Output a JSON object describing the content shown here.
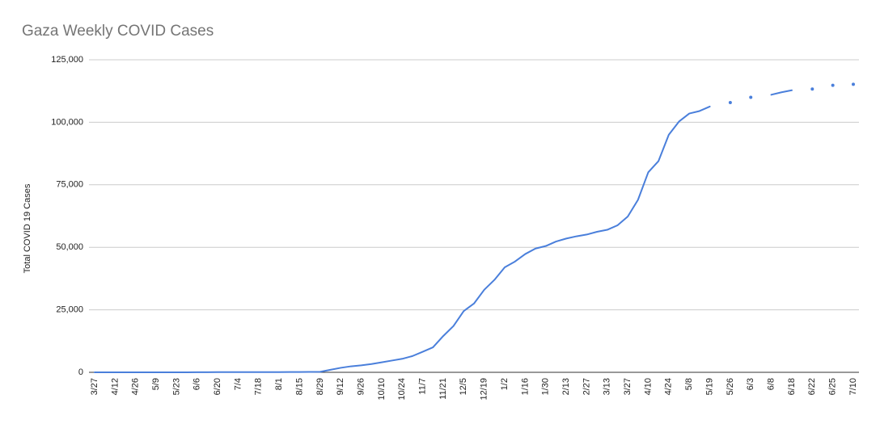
{
  "chart_data": {
    "type": "line",
    "title": "Gaza Weekly COVID Cases",
    "y_label": "Total COVID 19 Cases",
    "categories": [
      "3/27",
      null,
      "4/12",
      null,
      "4/26",
      null,
      "5/9",
      null,
      "5/23",
      null,
      "6/6",
      null,
      "6/20",
      null,
      "7/4",
      null,
      "7/18",
      null,
      "8/1",
      null,
      "8/15",
      null,
      "8/29",
      null,
      "9/12",
      null,
      "9/26",
      null,
      "10/10",
      null,
      "10/24",
      null,
      "11/7",
      null,
      "11/21",
      null,
      "12/5",
      null,
      "12/19",
      null,
      "1/2",
      null,
      "1/16",
      null,
      "1/30",
      null,
      "2/13",
      null,
      "2/27",
      null,
      "3/13",
      null,
      "3/27",
      null,
      "4/10",
      null,
      "4/24",
      null,
      "5/8",
      null,
      "5/19",
      null,
      "5/26",
      null,
      "6/3",
      null,
      "6/8",
      null,
      "6/18",
      null,
      "6/22",
      null,
      "6/25",
      null,
      "7/10"
    ],
    "series": [
      {
        "name": "Total COVID 19 Cases",
        "color": "#4a7fdb",
        "values": [
          0,
          0,
          0,
          0,
          0,
          0,
          0,
          0,
          0,
          0,
          50,
          50,
          60,
          70,
          70,
          80,
          80,
          90,
          100,
          110,
          120,
          150,
          200,
          1000,
          1800,
          2400,
          2800,
          3300,
          4000,
          4700,
          5400,
          6500,
          8200,
          10000,
          14500,
          18500,
          24500,
          27500,
          33000,
          37000,
          42000,
          44300,
          47300,
          49500,
          50500,
          52300,
          53500,
          54400,
          55100,
          56200,
          57000,
          58800,
          62300,
          69000,
          80000,
          84500,
          95000,
          100300,
          103500,
          104500,
          106300,
          null,
          107900,
          null,
          110000,
          null,
          111000,
          112000,
          112800,
          null,
          113300,
          null,
          114800,
          null,
          115200
        ]
      }
    ],
    "ylim": [
      0,
      125000
    ],
    "yticks": [
      0,
      {
        "value": 25000,
        "label": "25,000"
      },
      {
        "value": 50000,
        "label": "50,000"
      },
      {
        "value": 75000,
        "label": "75,000"
      },
      {
        "value": 100000,
        "label": "100,000"
      },
      {
        "value": 125000,
        "label": "125,000"
      }
    ],
    "grid": true
  }
}
